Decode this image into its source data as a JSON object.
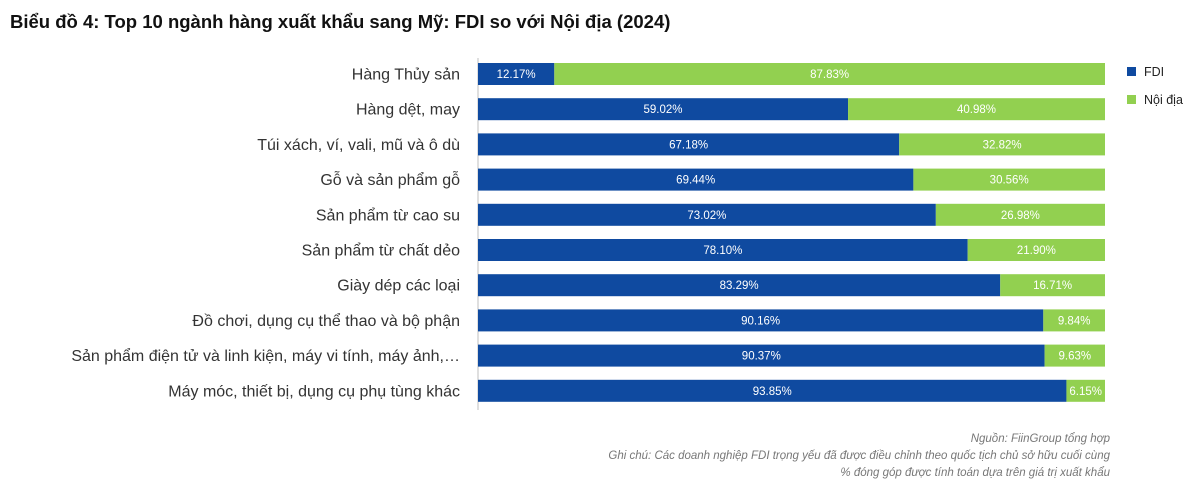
{
  "title": "Biểu đồ 4: Top 10 ngành hàng xuất khẩu sang Mỹ: FDI so với Nội địa (2024)",
  "chart_data": {
    "type": "bar",
    "orientation": "horizontal",
    "stacked": true,
    "percent_stacked": true,
    "title": "Biểu đồ 4: Top 10 ngành hàng xuất khẩu sang Mỹ: FDI so với Nội địa (2024)",
    "categories": [
      "Hàng Thủy sản",
      "Hàng dệt, may",
      "Túi xách, ví, vali, mũ và ô dù",
      "Gỗ và sản phẩm gỗ",
      "Sản phẩm từ cao su",
      "Sản phẩm từ chất dẻo",
      "Giày dép các loại",
      "Đồ chơi, dụng cụ thể thao và bộ phận",
      "Sản phẩm điện tử và linh kiện, máy vi tính, máy ảnh,…",
      "Máy móc, thiết bị, dụng cụ phụ tùng khác"
    ],
    "series": [
      {
        "name": "FDI",
        "color": "#0f4aa0",
        "values": [
          12.17,
          59.02,
          67.18,
          69.44,
          73.02,
          78.1,
          83.29,
          90.16,
          90.37,
          93.85
        ],
        "labels": [
          "12.17%",
          "59.02%",
          "67.18%",
          "69.44%",
          "73.02%",
          "78.10%",
          "83.29%",
          "90.16%",
          "90.37%",
          "93.85%"
        ]
      },
      {
        "name": "Nội địa",
        "color": "#92d050",
        "values": [
          87.83,
          40.98,
          32.82,
          30.56,
          26.98,
          21.9,
          16.71,
          9.84,
          9.63,
          6.15
        ],
        "labels": [
          "87.83%",
          "40.98%",
          "32.82%",
          "30.56%",
          "26.98%",
          "21.90%",
          "16.71%",
          "9.84%",
          "9.63%",
          "6.15%"
        ]
      }
    ],
    "xlim": [
      0,
      100
    ],
    "grid": false,
    "legend": "right"
  },
  "notes": {
    "source": "Nguồn: FiinGroup tổng hợp",
    "note1": "Ghi chú: Các doanh nghiệp FDI trọng yếu đã được điều chỉnh theo quốc tịch chủ sở hữu cuối cùng",
    "note2": "% đóng góp được tính toán dựa trên giá trị xuất khẩu"
  }
}
